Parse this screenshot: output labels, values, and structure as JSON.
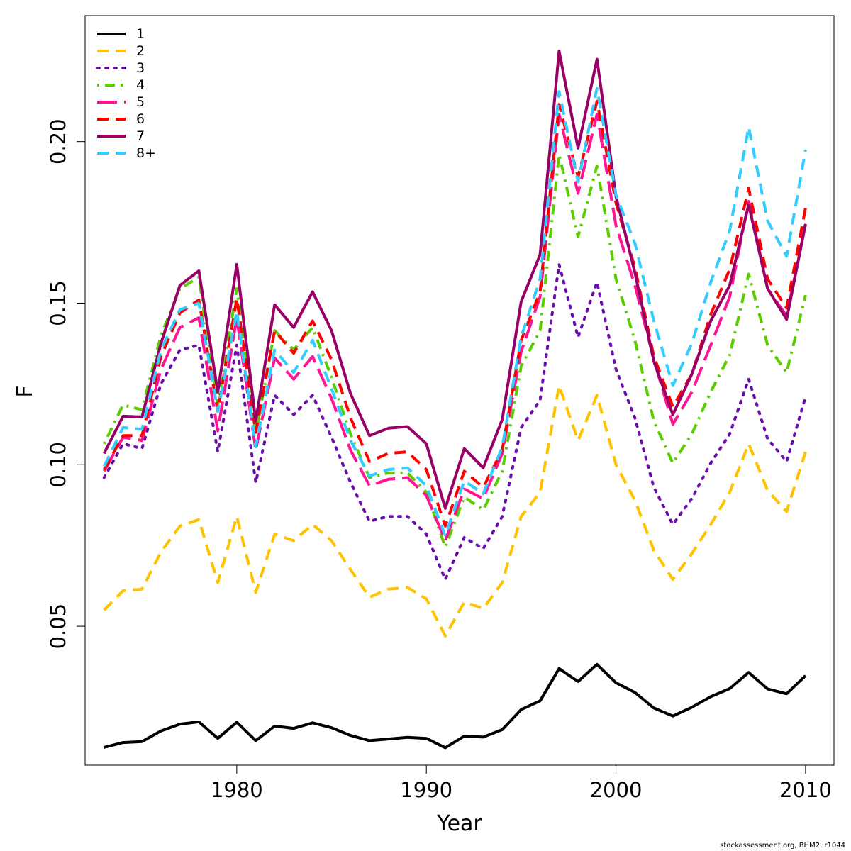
{
  "chart_data": {
    "type": "line",
    "xlabel": "Year",
    "ylabel": "F",
    "xlim": [
      1972,
      2011.5
    ],
    "ylim": [
      0.007,
      0.239
    ],
    "xticks": [
      1980,
      1990,
      2000,
      2010
    ],
    "xtick_labels": [
      "1980",
      "1990",
      "2000",
      "2010"
    ],
    "yticks": [
      0.05,
      0.1,
      0.15,
      0.2
    ],
    "ytick_labels": [
      "0.05",
      "0.10",
      "0.15",
      "0.20"
    ],
    "grid": false,
    "legend_position": "top-left",
    "x": [
      1973,
      1974,
      1975,
      1976,
      1977,
      1978,
      1979,
      1980,
      1981,
      1982,
      1983,
      1984,
      1985,
      1986,
      1987,
      1988,
      1989,
      1990,
      1991,
      1992,
      1993,
      1994,
      1995,
      1996,
      1997,
      1998,
      1999,
      2000,
      2001,
      2002,
      2003,
      2004,
      2005,
      2006,
      2007,
      2008,
      2009,
      2010
    ],
    "series": [
      {
        "name": "1",
        "color": "#000000",
        "dash": "solid",
        "values": [
          0.0125,
          0.014,
          0.0143,
          0.0176,
          0.0197,
          0.0204,
          0.0153,
          0.0203,
          0.0146,
          0.0191,
          0.0184,
          0.0201,
          0.0186,
          0.0162,
          0.0146,
          0.0151,
          0.0156,
          0.0153,
          0.0124,
          0.016,
          0.0157,
          0.018,
          0.0242,
          0.0269,
          0.0369,
          0.0329,
          0.0382,
          0.0325,
          0.0295,
          0.0247,
          0.0222,
          0.0249,
          0.0282,
          0.0307,
          0.0357,
          0.0306,
          0.0291,
          0.0347
        ]
      },
      {
        "name": "2",
        "color": "#FFC200",
        "dash": "dashed",
        "values": [
          0.055,
          0.061,
          0.0615,
          0.073,
          0.081,
          0.083,
          0.0635,
          0.084,
          0.0605,
          0.0785,
          0.0765,
          0.0815,
          0.0765,
          0.0675,
          0.059,
          0.0615,
          0.062,
          0.0585,
          0.047,
          0.0575,
          0.0555,
          0.0635,
          0.084,
          0.0915,
          0.1245,
          0.1075,
          0.1215,
          0.1,
          0.089,
          0.0735,
          0.0645,
          0.0725,
          0.0815,
          0.0915,
          0.1065,
          0.092,
          0.0855,
          0.104
        ]
      },
      {
        "name": "3",
        "color": "#6A0DAD",
        "dash": "dotted",
        "values": [
          0.096,
          0.1065,
          0.105,
          0.125,
          0.1355,
          0.137,
          0.104,
          0.137,
          0.0945,
          0.1215,
          0.1155,
          0.1215,
          0.1085,
          0.0945,
          0.0825,
          0.084,
          0.084,
          0.0785,
          0.0645,
          0.0775,
          0.074,
          0.084,
          0.1115,
          0.12,
          0.162,
          0.1395,
          0.1565,
          0.1295,
          0.1145,
          0.093,
          0.0815,
          0.0895,
          0.1005,
          0.1095,
          0.1265,
          0.108,
          0.101,
          0.121
        ]
      },
      {
        "name": "4",
        "color": "#5ACD00",
        "dash": "dashdot",
        "values": [
          0.1065,
          0.1185,
          0.117,
          0.14,
          0.1545,
          0.158,
          0.1185,
          0.1545,
          0.1095,
          0.1415,
          0.1355,
          0.1425,
          0.127,
          0.1095,
          0.096,
          0.0975,
          0.0975,
          0.0915,
          0.0745,
          0.09,
          0.086,
          0.098,
          0.1305,
          0.1415,
          0.196,
          0.1705,
          0.1925,
          0.1575,
          0.1385,
          0.1135,
          0.1005,
          0.1095,
          0.1225,
          0.134,
          0.159,
          0.137,
          0.1285,
          0.1525
        ]
      },
      {
        "name": "5",
        "color": "#FF1493",
        "dash": "longdash",
        "values": [
          0.098,
          0.1085,
          0.1075,
          0.1295,
          0.1425,
          0.1455,
          0.1105,
          0.1455,
          0.1045,
          0.133,
          0.1265,
          0.1335,
          0.1205,
          0.1045,
          0.0935,
          0.0955,
          0.096,
          0.0905,
          0.0765,
          0.0925,
          0.0895,
          0.1035,
          0.135,
          0.152,
          0.2085,
          0.184,
          0.2085,
          0.174,
          0.1555,
          0.1325,
          0.1125,
          0.1225,
          0.137,
          0.152,
          0.1815,
          0.1545,
          0.146,
          0.1745
        ]
      },
      {
        "name": "6",
        "color": "#FF0000",
        "dash": "dashed",
        "values": [
          0.0985,
          0.109,
          0.109,
          0.1335,
          0.147,
          0.151,
          0.1165,
          0.1515,
          0.11,
          0.1415,
          0.1345,
          0.1445,
          0.1325,
          0.1145,
          0.101,
          0.1035,
          0.104,
          0.0985,
          0.081,
          0.098,
          0.093,
          0.1045,
          0.1385,
          0.1535,
          0.2115,
          0.189,
          0.2125,
          0.181,
          0.161,
          0.1335,
          0.118,
          0.128,
          0.1465,
          0.1605,
          0.1855,
          0.1575,
          0.1485,
          0.1795
        ]
      },
      {
        "name": "7",
        "color": "#990066",
        "dash": "solid",
        "values": [
          0.1035,
          0.115,
          0.1148,
          0.1375,
          0.1555,
          0.16,
          0.1225,
          0.162,
          0.1135,
          0.1495,
          0.1425,
          0.1535,
          0.1415,
          0.122,
          0.109,
          0.1113,
          0.1118,
          0.1065,
          0.0865,
          0.105,
          0.099,
          0.114,
          0.1505,
          0.165,
          0.228,
          0.198,
          0.2255,
          0.183,
          0.1595,
          0.132,
          0.1155,
          0.128,
          0.1445,
          0.1555,
          0.1805,
          0.1545,
          0.145,
          0.1745
        ]
      },
      {
        "name": "8+",
        "color": "#33CCFF",
        "dash": "dashed",
        "values": [
          0.0995,
          0.1115,
          0.111,
          0.1355,
          0.148,
          0.15,
          0.1165,
          0.1475,
          0.1055,
          0.1355,
          0.1285,
          0.1385,
          0.1235,
          0.1075,
          0.0965,
          0.0985,
          0.099,
          0.0935,
          0.078,
          0.095,
          0.091,
          0.1055,
          0.1395,
          0.1575,
          0.2155,
          0.1875,
          0.2165,
          0.1835,
          0.1685,
          0.1445,
          0.1245,
          0.1375,
          0.1565,
          0.1725,
          0.2045,
          0.1755,
          0.1645,
          0.1975
        ]
      }
    ]
  },
  "footer": "stockassessment.org, BHM2, r1044"
}
